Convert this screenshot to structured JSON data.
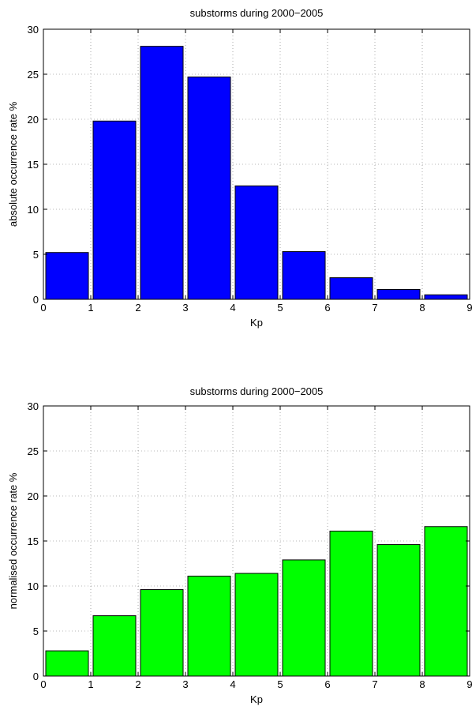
{
  "chart_data": [
    {
      "type": "bar",
      "title": "substorms during 2000−2005",
      "xlabel": "Kp",
      "ylabel": "absolute occurrence rate  %",
      "x": [
        0.5,
        1.5,
        2.5,
        3.5,
        4.5,
        5.5,
        6.5,
        7.5,
        8.5
      ],
      "values": [
        5.2,
        19.8,
        28.1,
        24.7,
        12.6,
        5.3,
        2.4,
        1.1,
        0.5
      ],
      "xlim": [
        0,
        9
      ],
      "ylim": [
        0,
        30
      ],
      "xticks": [
        0,
        1,
        2,
        3,
        4,
        5,
        6,
        7,
        8,
        9
      ],
      "yticks": [
        0,
        5,
        10,
        15,
        20,
        25,
        30
      ],
      "grid": true,
      "color": "#0000ff"
    },
    {
      "type": "bar",
      "title": "substorms during 2000−2005",
      "xlabel": "Kp",
      "ylabel": "normalised occurrence rate  %",
      "x": [
        0.5,
        1.5,
        2.5,
        3.5,
        4.5,
        5.5,
        6.5,
        7.5,
        8.5
      ],
      "values": [
        2.8,
        6.7,
        9.6,
        11.1,
        11.4,
        12.9,
        16.1,
        14.6,
        16.6
      ],
      "xlim": [
        0,
        9
      ],
      "ylim": [
        0,
        30
      ],
      "xticks": [
        0,
        1,
        2,
        3,
        4,
        5,
        6,
        7,
        8,
        9
      ],
      "yticks": [
        0,
        5,
        10,
        15,
        20,
        25,
        30
      ],
      "grid": true,
      "color": "#00ff00"
    }
  ]
}
